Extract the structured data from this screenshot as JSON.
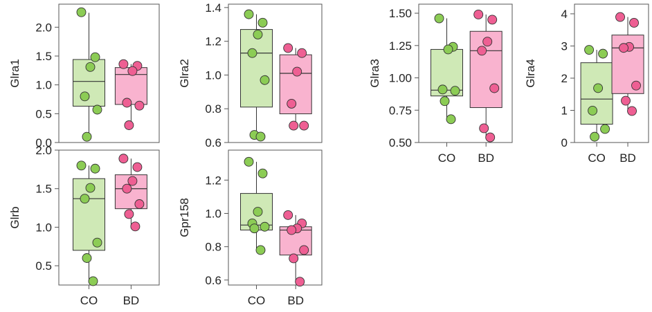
{
  "colors": {
    "co_box": "#cfe9b6",
    "co_point": "#8ccc55",
    "bd_box": "#f9b3cf",
    "bd_point": "#ee5f93",
    "stroke": "#333333"
  },
  "chart_data": [
    {
      "type": "box",
      "ylabel": "Glra1",
      "yticks": [
        "0.0",
        "0.5",
        "1.0",
        "1.5",
        "2.0"
      ],
      "ylim": [
        0.0,
        2.4
      ],
      "categories": [
        "CO",
        "BD"
      ],
      "show_xticks": false,
      "groups": [
        {
          "name": "CO",
          "q1": 0.63,
          "median": 1.06,
          "q3": 1.44,
          "whisker_low": 0.1,
          "whisker_high": 2.25,
          "points": [
            2.26,
            1.48,
            1.31,
            0.8,
            0.57,
            0.1
          ]
        },
        {
          "name": "BD",
          "q1": 0.66,
          "median": 1.18,
          "q3": 1.3,
          "whisker_low": 0.3,
          "whisker_high": 1.36,
          "points": [
            1.36,
            1.33,
            1.24,
            0.69,
            0.64,
            0.3
          ]
        }
      ]
    },
    {
      "type": "box",
      "ylabel": "Glra2",
      "yticks": [
        "0.6",
        "0.8",
        "1.0",
        "1.2",
        "1.4"
      ],
      "ylim": [
        0.6,
        1.42
      ],
      "categories": [
        "CO",
        "BD"
      ],
      "show_xticks": false,
      "groups": [
        {
          "name": "CO",
          "q1": 0.81,
          "median": 1.13,
          "q3": 1.27,
          "whisker_low": 0.64,
          "whisker_high": 1.36,
          "points": [
            1.36,
            1.31,
            1.24,
            1.13,
            0.97,
            0.645,
            0.635
          ]
        },
        {
          "name": "BD",
          "q1": 0.77,
          "median": 1.01,
          "q3": 1.12,
          "whisker_low": 0.7,
          "whisker_high": 1.16,
          "points": [
            1.16,
            1.13,
            1.02,
            0.83,
            0.7,
            0.7
          ]
        }
      ]
    },
    {
      "type": "box",
      "ylabel": "Glra3",
      "yticks": [
        "0.50",
        "0.75",
        "1.00",
        "1.25",
        "1.50"
      ],
      "ylim": [
        0.5,
        1.57
      ],
      "categories": [
        "CO",
        "BD"
      ],
      "show_xticks": true,
      "groups": [
        {
          "name": "CO",
          "q1": 0.86,
          "median": 0.905,
          "q3": 1.22,
          "whisker_low": 0.68,
          "whisker_high": 1.46,
          "points": [
            1.46,
            1.24,
            1.22,
            0.91,
            0.9,
            0.82,
            0.68
          ]
        },
        {
          "name": "BD",
          "q1": 0.77,
          "median": 1.21,
          "q3": 1.36,
          "whisker_low": 0.54,
          "whisker_high": 1.49,
          "points": [
            1.49,
            1.45,
            1.28,
            1.21,
            0.92,
            0.61,
            0.54
          ]
        }
      ]
    },
    {
      "type": "box",
      "ylabel": "Glra4",
      "yticks": [
        "0",
        "1",
        "2",
        "3",
        "4"
      ],
      "ylim": [
        0,
        4.3
      ],
      "categories": [
        "CO",
        "BD"
      ],
      "show_xticks": true,
      "groups": [
        {
          "name": "CO",
          "q1": 0.57,
          "median": 1.35,
          "q3": 2.48,
          "whisker_low": 0.18,
          "whisker_high": 2.88,
          "points": [
            2.88,
            2.76,
            1.69,
            0.99,
            0.42,
            0.18
          ]
        },
        {
          "name": "BD",
          "q1": 1.52,
          "median": 2.94,
          "q3": 3.34,
          "whisker_low": 0.98,
          "whisker_high": 3.9,
          "points": [
            3.9,
            3.72,
            2.97,
            2.94,
            1.77,
            1.3,
            0.98
          ]
        }
      ]
    },
    {
      "type": "box",
      "ylabel": "Glrb",
      "yticks": [
        "0.5",
        "1.0",
        "1.5",
        "2.0"
      ],
      "ylim": [
        0.25,
        2.0
      ],
      "categories": [
        "CO",
        "BD"
      ],
      "show_xticks": true,
      "groups": [
        {
          "name": "CO",
          "q1": 0.7,
          "median": 1.37,
          "q3": 1.63,
          "whisker_low": 0.3,
          "whisker_high": 1.8,
          "points": [
            1.8,
            1.76,
            1.51,
            1.37,
            0.8,
            0.6,
            0.3
          ]
        },
        {
          "name": "BD",
          "q1": 1.24,
          "median": 1.5,
          "q3": 1.68,
          "whisker_low": 1.01,
          "whisker_high": 1.89,
          "points": [
            1.89,
            1.78,
            1.6,
            1.5,
            1.3,
            1.17,
            1.01
          ]
        }
      ]
    },
    {
      "type": "box",
      "ylabel": "Gpr158",
      "yticks": [
        "0.6",
        "0.8",
        "1.0",
        "1.2"
      ],
      "ylim": [
        0.57,
        1.38
      ],
      "categories": [
        "CO",
        "BD"
      ],
      "show_xticks": true,
      "groups": [
        {
          "name": "CO",
          "q1": 0.9,
          "median": 0.93,
          "q3": 1.12,
          "whisker_low": 0.78,
          "whisker_high": 1.31,
          "points": [
            1.31,
            1.24,
            1.01,
            0.94,
            0.92,
            0.91,
            0.78
          ]
        },
        {
          "name": "BD",
          "q1": 0.75,
          "median": 0.9,
          "q3": 0.92,
          "whisker_low": 0.59,
          "whisker_high": 0.99,
          "points": [
            0.99,
            0.94,
            0.91,
            0.9,
            0.78,
            0.73,
            0.59
          ]
        }
      ]
    }
  ]
}
